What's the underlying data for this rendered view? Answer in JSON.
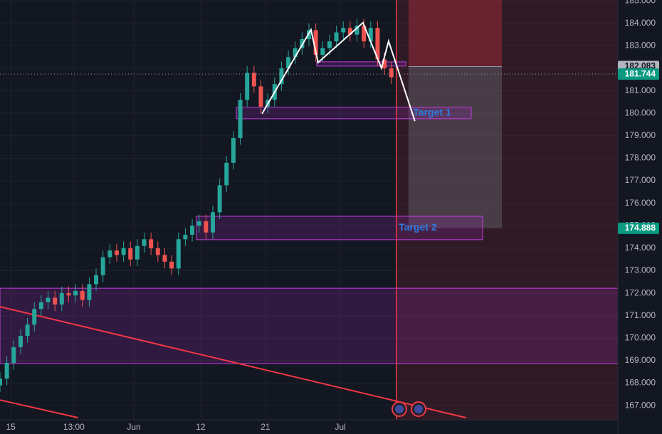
{
  "chart_data": {
    "type": "candlestick",
    "xlim": [
      0,
      270
    ],
    "ylim": [
      166.37,
      185.04
    ],
    "grid": true,
    "xticks": [
      {
        "value": 4.7,
        "label": "15"
      },
      {
        "value": 32.3,
        "label": "13:00"
      },
      {
        "value": 58.5,
        "label": "Jun"
      },
      {
        "value": 87.7,
        "label": "12"
      },
      {
        "value": 116,
        "label": "21"
      },
      {
        "value": 148.7,
        "label": "Jul"
      }
    ],
    "yticks": [
      {
        "value": 167,
        "label": "167.000"
      },
      {
        "value": 168,
        "label": "168.000"
      },
      {
        "value": 169,
        "label": "169.000"
      },
      {
        "value": 170,
        "label": "170.000"
      },
      {
        "value": 171,
        "label": "171.000"
      },
      {
        "value": 172,
        "label": "172.000"
      },
      {
        "value": 173,
        "label": "173.000"
      },
      {
        "value": 174,
        "label": "174.000"
      },
      {
        "value": 175,
        "label": "175.000"
      },
      {
        "value": 176,
        "label": "176.000"
      },
      {
        "value": 177,
        "label": "177.000"
      },
      {
        "value": 178,
        "label": "178.000"
      },
      {
        "value": 179,
        "label": "179.000"
      },
      {
        "value": 180,
        "label": "180.000"
      },
      {
        "value": 181,
        "label": "181.000"
      },
      {
        "value": 182,
        "label": "182.000"
      },
      {
        "value": 183,
        "label": "183.000"
      },
      {
        "value": 184,
        "label": "184.000"
      },
      {
        "value": 185,
        "label": "185.000"
      }
    ],
    "up_color": "#26a69a",
    "down_color": "#ef5350",
    "x": [
      0,
      3,
      6,
      9,
      12,
      15,
      18,
      21,
      24,
      27,
      30,
      33,
      36,
      39,
      42,
      45,
      48,
      51,
      54,
      57,
      60,
      63,
      66,
      69,
      72,
      75,
      78,
      81,
      84,
      87,
      90,
      93,
      96,
      99,
      102,
      105,
      108,
      111,
      114,
      117,
      120,
      123,
      126,
      129,
      132,
      135,
      138,
      141,
      144,
      147,
      150,
      153,
      156,
      159,
      162,
      165,
      168,
      171
    ],
    "open": [
      167.9,
      168.2,
      168.9,
      169.6,
      170.1,
      170.6,
      171.3,
      171.6,
      171.8,
      171.5,
      172.0,
      171.9,
      172.1,
      171.7,
      172.4,
      172.8,
      173.6,
      173.9,
      173.7,
      174.0,
      173.5,
      174.1,
      174.4,
      174.0,
      173.7,
      173.4,
      173.1,
      174.4,
      174.6,
      175.0,
      175.2,
      174.7,
      175.6,
      176.8,
      177.8,
      178.9,
      180.6,
      181.8,
      181.2,
      180.3,
      180.6,
      181.3,
      182.0,
      182.5,
      182.9,
      183.3,
      183.7,
      182.6,
      182.9,
      183.2,
      183.6,
      183.8,
      183.5,
      183.9,
      183.2,
      183.8,
      182.4,
      182.0
    ],
    "high": [
      168.5,
      169.2,
      169.9,
      170.4,
      170.9,
      171.6,
      171.9,
      172.1,
      172.1,
      172.3,
      172.3,
      172.4,
      172.4,
      172.7,
      173.1,
      173.9,
      174.2,
      174.2,
      174.3,
      174.3,
      174.4,
      174.7,
      174.7,
      174.3,
      174.0,
      173.7,
      174.7,
      174.9,
      175.3,
      175.5,
      175.5,
      175.9,
      177.1,
      178.1,
      179.2,
      180.9,
      182.1,
      182.1,
      181.5,
      180.9,
      181.6,
      182.3,
      182.8,
      183.2,
      183.6,
      184.0,
      184.0,
      183.2,
      183.5,
      183.9,
      184.1,
      184.1,
      184.2,
      184.2,
      184.1,
      184.1,
      182.7,
      182.3
    ],
    "low": [
      167.6,
      167.9,
      168.6,
      169.3,
      169.8,
      170.3,
      171.0,
      171.3,
      171.2,
      171.2,
      171.6,
      171.6,
      171.4,
      171.4,
      172.1,
      172.5,
      173.3,
      173.4,
      173.4,
      173.2,
      173.2,
      173.8,
      173.7,
      173.4,
      173.1,
      172.8,
      172.8,
      174.1,
      174.3,
      174.7,
      174.4,
      174.4,
      175.3,
      176.5,
      177.5,
      178.6,
      180.3,
      180.9,
      180.0,
      180.0,
      180.3,
      181.0,
      181.7,
      182.2,
      182.6,
      183.0,
      182.3,
      182.3,
      182.6,
      182.9,
      183.3,
      183.2,
      183.2,
      182.9,
      182.9,
      182.1,
      181.7,
      181.3
    ],
    "close": [
      168.2,
      168.9,
      169.6,
      170.1,
      170.6,
      171.3,
      171.6,
      171.8,
      171.5,
      172.0,
      171.9,
      172.1,
      171.7,
      172.4,
      172.8,
      173.6,
      173.9,
      173.7,
      174.0,
      173.5,
      174.1,
      174.4,
      174.0,
      173.7,
      173.4,
      173.1,
      174.4,
      174.6,
      175.0,
      175.2,
      174.7,
      175.6,
      176.8,
      177.8,
      178.9,
      180.6,
      181.8,
      181.2,
      180.3,
      180.6,
      181.3,
      182.0,
      182.5,
      182.9,
      183.3,
      183.7,
      182.6,
      182.9,
      183.2,
      183.6,
      183.8,
      183.5,
      183.9,
      183.2,
      183.8,
      182.4,
      182.0,
      181.6
    ],
    "zones": [
      {
        "x": [
          0,
          270
        ],
        "top": 172.22,
        "bottom": 168.87
      },
      {
        "x": [
          85.8,
          210.9
        ],
        "top": 175.42,
        "bottom": 174.38,
        "label": "Target 2"
      },
      {
        "x": [
          103.3,
          205.9
        ],
        "top": 180.27,
        "bottom": 179.76,
        "label": "Target 1"
      },
      {
        "x": [
          138.4,
          177.3
        ],
        "top": 182.29,
        "bottom": 182.1
      }
    ],
    "position": {
      "x": [
        178.5,
        219.3
      ],
      "stop": 185.04,
      "entry": 182.083,
      "target": 174.888
    },
    "vline": 173.2,
    "trendlines": [
      {
        "x": [
          0,
          203.7
        ],
        "y": [
          171.4,
          166.46
        ]
      },
      {
        "x": [
          0,
          34.2
        ],
        "y": [
          167.25,
          166.46
        ]
      }
    ],
    "pattern": {
      "x": [
        114.5,
        135.9,
        139.0,
        158.6,
        166.7,
        169.8,
        181.3
      ],
      "y": [
        179.98,
        183.72,
        182.26,
        184.03,
        182.01,
        183.21,
        179.66
      ]
    },
    "current_price": 181.744,
    "price_labels": [
      {
        "value": 182.083,
        "color": "#b2b5be",
        "text_color": "#131722"
      },
      {
        "value": 181.744,
        "color": "#089981",
        "text_color": "#ffffff"
      },
      {
        "value": 174.888,
        "color": "#089981",
        "text_color": "#ffffff"
      }
    ]
  }
}
